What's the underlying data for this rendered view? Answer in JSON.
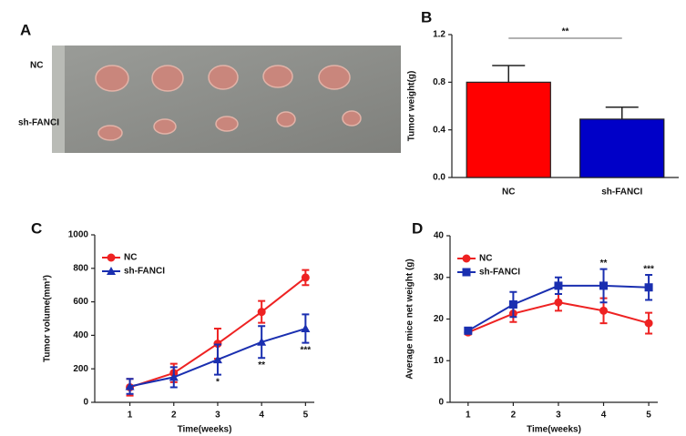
{
  "photo": {
    "panel_label": "A",
    "row_labels": [
      "NC",
      "sh-FANCI"
    ]
  },
  "chart_data": [
    {
      "type": "bar",
      "panel_label": "B",
      "y_label": "Tumor weight(g)",
      "categories": [
        "NC",
        "sh-FANCI"
      ],
      "values": [
        0.8,
        0.49
      ],
      "errors": [
        0.14,
        0.1
      ],
      "colors": [
        "#ff0000",
        "#0000c8"
      ],
      "ylim": [
        0,
        1.2
      ],
      "yticks": [
        {
          "value": 0,
          "label": "0.0"
        },
        0.4,
        0.8,
        1.2
      ],
      "significance": {
        "text": "**"
      }
    },
    {
      "type": "line",
      "panel_label": "C",
      "y_label": "Tumor volume(mm³)",
      "x_label": "Time(weeks)",
      "x": [
        1,
        2,
        3,
        4,
        5
      ],
      "series": [
        {
          "name": "NC",
          "color": "#ee2222",
          "marker": "circle",
          "values": [
            90,
            175,
            350,
            540,
            745
          ],
          "errors": [
            50,
            55,
            90,
            65,
            45
          ]
        },
        {
          "name": "sh-FANCI",
          "color": "#1a2fb0",
          "marker": "triangle",
          "values": [
            95,
            150,
            255,
            360,
            440
          ],
          "errors": [
            45,
            60,
            90,
            95,
            85
          ]
        }
      ],
      "xlim": [
        0.2,
        5.2
      ],
      "xticks": [
        1,
        2,
        3,
        4,
        5
      ],
      "ylim": [
        0,
        1000
      ],
      "yticks": [
        0,
        200,
        400,
        600,
        800,
        1000
      ],
      "annotations": [
        {
          "x": 3,
          "text": "*",
          "position": "below"
        },
        {
          "x": 4,
          "text": "**",
          "position": "below"
        },
        {
          "x": 5,
          "text": "***",
          "position": "below"
        }
      ]
    },
    {
      "type": "line",
      "panel_label": "D",
      "y_label": "Average mice net weight (g)",
      "x_label": "Time(weeks)",
      "x": [
        1,
        2,
        3,
        4,
        5
      ],
      "series": [
        {
          "name": "NC",
          "color": "#ee2222",
          "marker": "circle",
          "values": [
            16.8,
            21.3,
            24,
            22,
            19
          ],
          "errors": [
            0.5,
            2,
            2,
            3,
            2.5
          ]
        },
        {
          "name": "sh-FANCI",
          "color": "#1a2fb0",
          "marker": "square",
          "values": [
            17.2,
            23.5,
            28,
            28,
            27.6
          ],
          "errors": [
            0.5,
            3,
            2,
            4,
            3
          ]
        }
      ],
      "xlim": [
        0.6,
        5.2
      ],
      "xticks": [
        1,
        2,
        3,
        4,
        5
      ],
      "ylim": [
        0,
        40
      ],
      "yticks": [
        0,
        10,
        20,
        30,
        40
      ],
      "annotations": [
        {
          "x": 4,
          "text": "**",
          "position": "above"
        },
        {
          "x": 5,
          "text": "***",
          "position": "above"
        }
      ]
    }
  ]
}
